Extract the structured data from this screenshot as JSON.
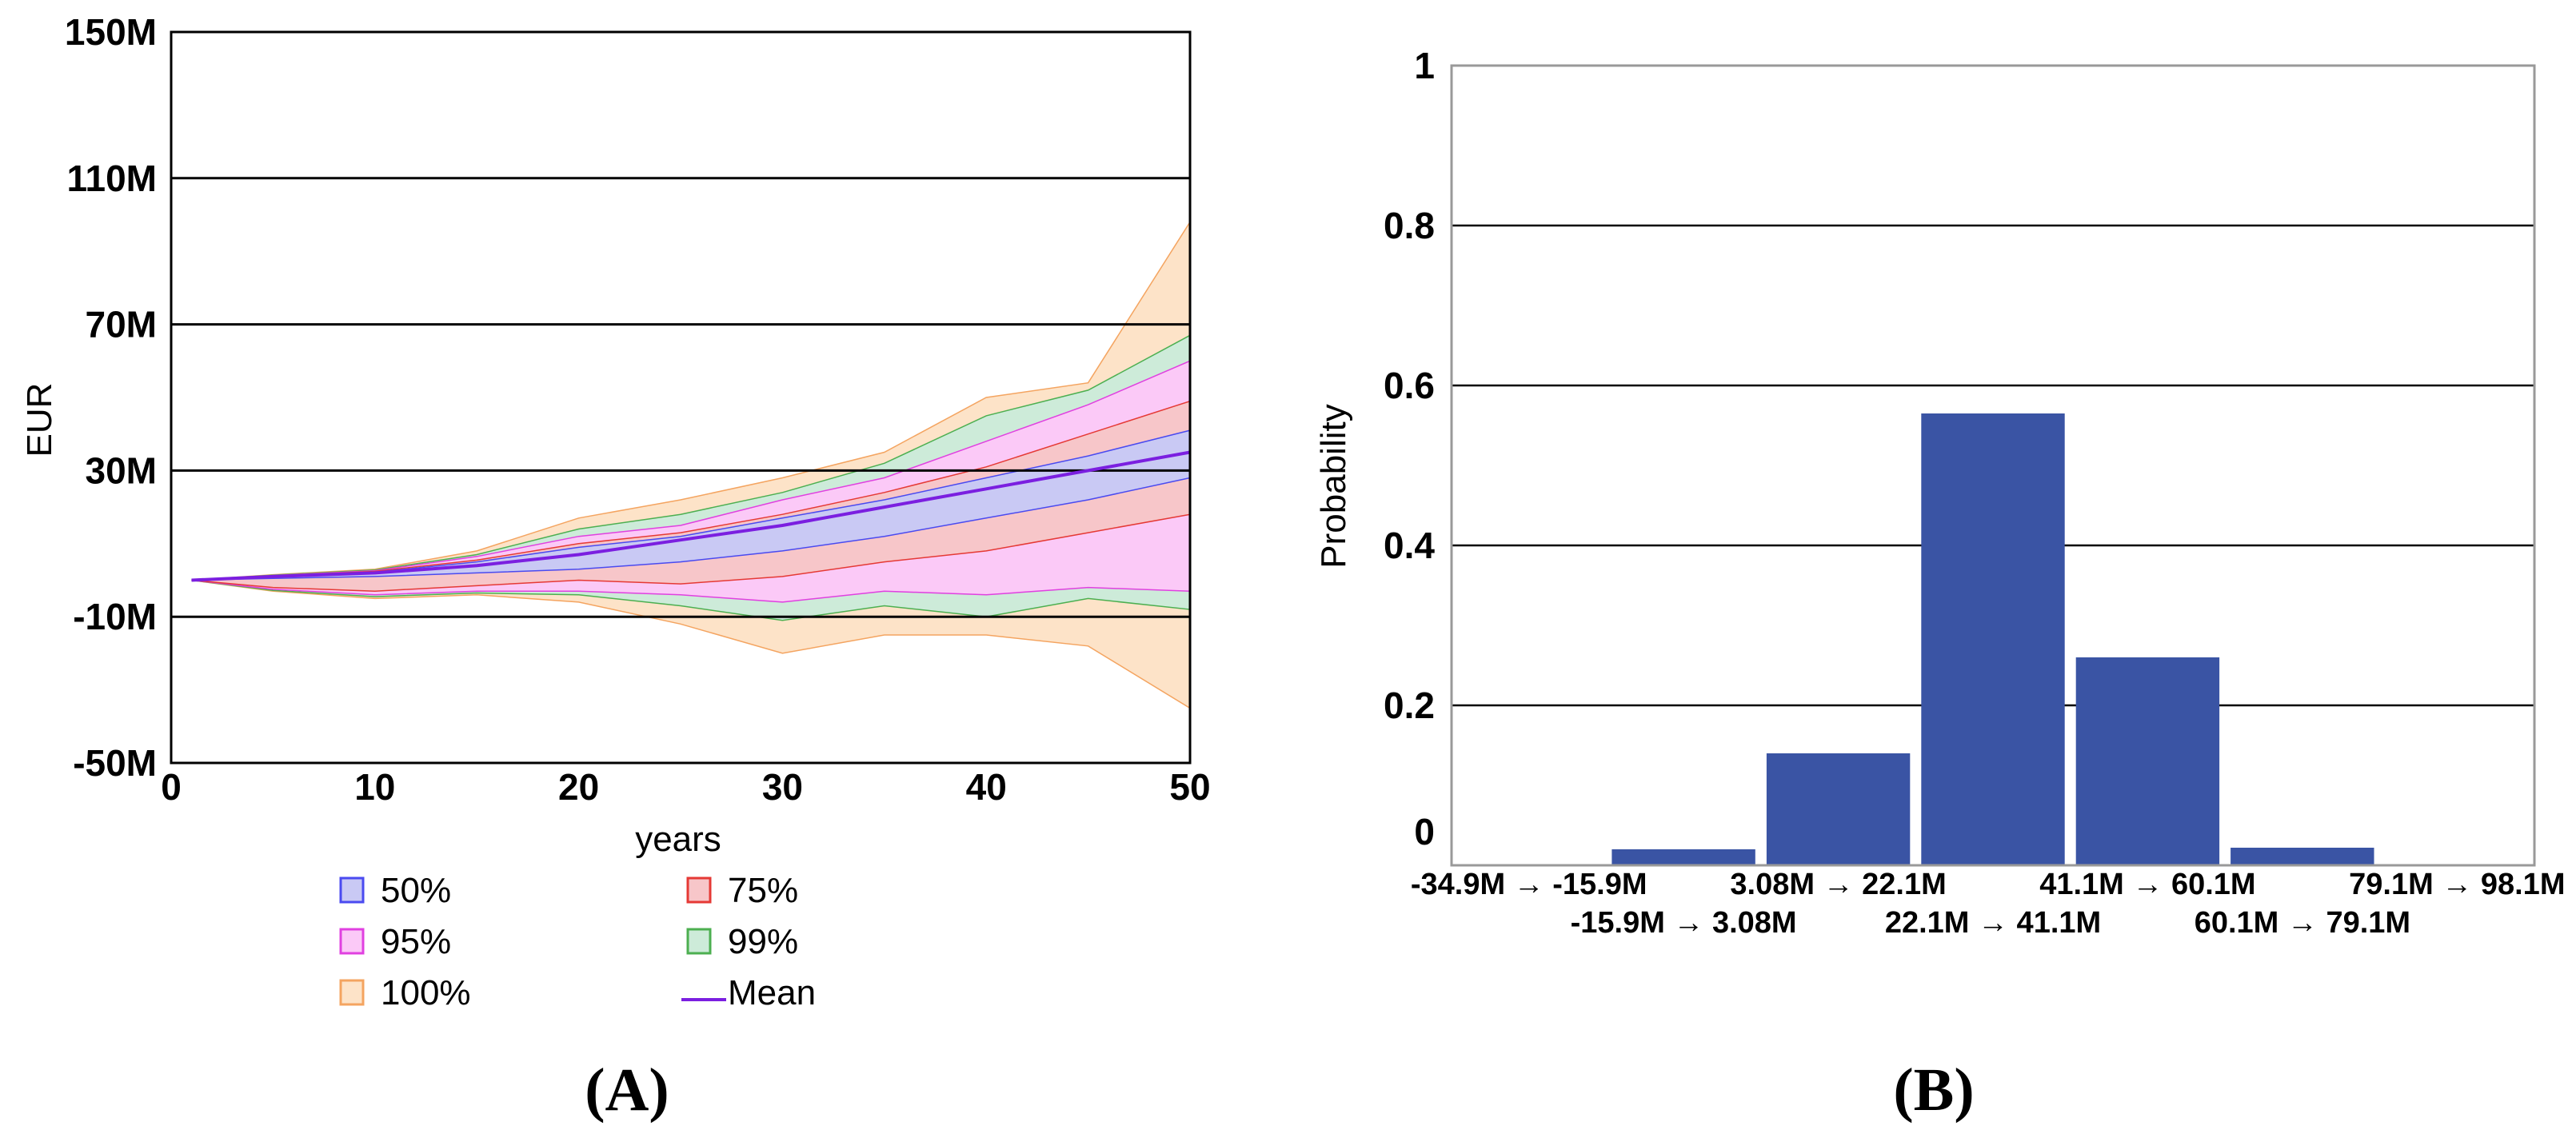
{
  "colors": {
    "band_100": "#fde3c8",
    "band_100_edge": "#f4a460",
    "band_99": "#cdebd9",
    "band_99_edge": "#4caf50",
    "band_95": "#fbc9f7",
    "band_95_edge": "#e040e0",
    "band_75": "#f7c6c9",
    "band_75_edge": "#e53935",
    "band_50": "#c9c9f4",
    "band_50_edge": "#4a4af0",
    "mean": "#7b1fe0",
    "bar": "#3a54a4",
    "grid": "#000000"
  },
  "chart_data": [
    {
      "panel": "(A)",
      "type": "area",
      "title": "",
      "xlabel": "years",
      "ylabel": "EUR",
      "xlim": [
        0,
        50
      ],
      "ylim": [
        -50,
        150
      ],
      "xticks": [
        {
          "v": 0,
          "label": "0"
        },
        {
          "v": 10,
          "label": "10"
        },
        {
          "v": 20,
          "label": "20"
        },
        {
          "v": 30,
          "label": "30"
        },
        {
          "v": 40,
          "label": "40"
        },
        {
          "v": 50,
          "label": "50"
        }
      ],
      "yticks": [
        {
          "v": 150,
          "label": "150M"
        },
        {
          "v": 110,
          "label": "110M"
        },
        {
          "v": 70,
          "label": "70M"
        },
        {
          "v": 30,
          "label": "30M"
        },
        {
          "v": -10,
          "label": "-10M"
        },
        {
          "v": -50,
          "label": "-50M"
        }
      ],
      "gridlines": [
        110,
        70,
        30,
        -10
      ],
      "x": [
        1,
        5,
        10,
        15,
        20,
        25,
        30,
        35,
        40,
        45,
        50
      ],
      "mean": [
        0,
        1,
        2,
        4,
        7,
        11,
        15,
        20,
        25,
        30,
        35
      ],
      "bands": [
        {
          "name": "100%",
          "color_key": "band_100",
          "upper": [
            0,
            1.5,
            3,
            8,
            17,
            22,
            28,
            35,
            50,
            54,
            98
          ],
          "lower": [
            0,
            -3,
            -5,
            -4,
            -6,
            -12,
            -20,
            -15,
            -15,
            -18,
            -35
          ]
        },
        {
          "name": "99%",
          "color_key": "band_99",
          "upper": [
            0,
            1.4,
            2.8,
            7,
            14,
            18,
            24,
            32,
            45,
            52,
            67
          ],
          "lower": [
            0,
            -2.8,
            -4.5,
            -3.5,
            -4,
            -7,
            -11,
            -7,
            -10,
            -5,
            -8
          ]
        },
        {
          "name": "95%",
          "color_key": "band_95",
          "upper": [
            0,
            1.3,
            2.6,
            6.5,
            12,
            15,
            22,
            28,
            38,
            48,
            60
          ],
          "lower": [
            0,
            -2.5,
            -4,
            -3,
            -3,
            -4,
            -6,
            -3,
            -4,
            -2,
            -3
          ]
        },
        {
          "name": "75%",
          "color_key": "band_75",
          "upper": [
            0,
            1.2,
            2.4,
            5.5,
            10,
            13,
            18,
            24,
            31,
            40,
            49
          ],
          "lower": [
            0,
            -2,
            -3,
            -1.5,
            0,
            -1,
            1,
            5,
            8,
            13,
            18
          ]
        },
        {
          "name": "50%",
          "color_key": "band_50",
          "upper": [
            0,
            1.1,
            2.2,
            5,
            9,
            12,
            17,
            22,
            28,
            34,
            41
          ],
          "lower": [
            0,
            0.5,
            1,
            2,
            3,
            5,
            8,
            12,
            17,
            22,
            28
          ]
        }
      ],
      "legend": [
        {
          "label": "50%",
          "kind": "box",
          "color_key": "band_50"
        },
        {
          "label": "75%",
          "kind": "box",
          "color_key": "band_75"
        },
        {
          "label": "95%",
          "kind": "box",
          "color_key": "band_95"
        },
        {
          "label": "99%",
          "kind": "box",
          "color_key": "band_99"
        },
        {
          "label": "100%",
          "kind": "box",
          "color_key": "band_100"
        },
        {
          "label": "Mean",
          "kind": "line",
          "color_key": "mean"
        }
      ]
    },
    {
      "panel": "(B)",
      "type": "bar",
      "title": "",
      "xlabel": "",
      "ylabel": "Probability",
      "ylim": [
        0,
        1
      ],
      "yticks": [
        {
          "v": 1,
          "label": "1"
        },
        {
          "v": 0.8,
          "label": "0.8"
        },
        {
          "v": 0.6,
          "label": "0.6"
        },
        {
          "v": 0.4,
          "label": "0.4"
        },
        {
          "v": 0.2,
          "label": "0.2"
        },
        {
          "v": 0,
          "label": "0"
        }
      ],
      "gridlines": [
        0.8,
        0.6,
        0.4,
        0.2
      ],
      "categories": [
        "-34.9M → -15.9M",
        "-15.9M → 3.08M",
        "3.08M → 22.1M",
        "22.1M → 41.1M",
        "41.1M → 60.1M",
        "60.1M → 79.1M",
        "79.1M → 98.1M"
      ],
      "values": [
        0.001,
        0.02,
        0.14,
        0.565,
        0.26,
        0.022,
        0.001
      ]
    }
  ]
}
